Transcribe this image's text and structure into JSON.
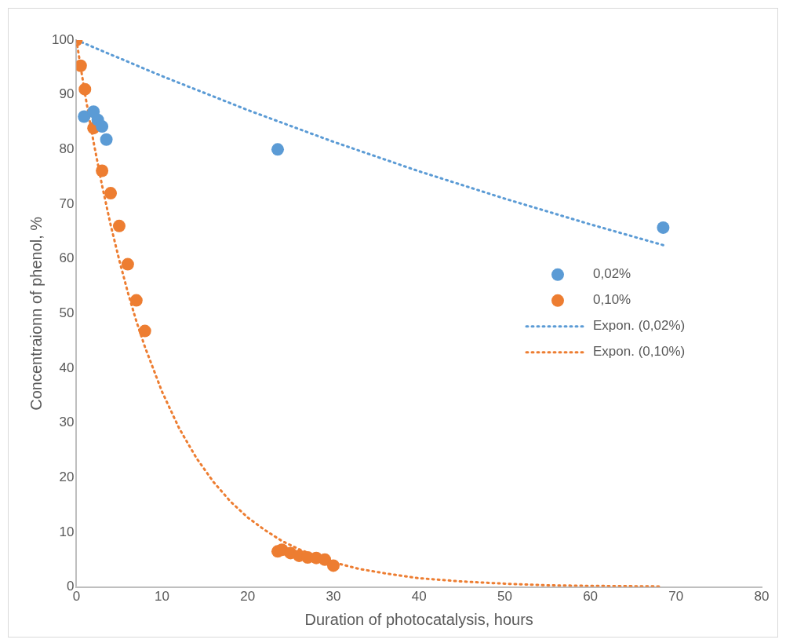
{
  "chart_data": {
    "type": "scatter",
    "xlabel": "Duration of photocatalysis, hours",
    "ylabel": "Concentraionn of phenol, %",
    "xlim": [
      0,
      80
    ],
    "xticks": [
      0,
      10,
      20,
      30,
      40,
      50,
      60,
      70,
      80
    ],
    "ylim": [
      0,
      100
    ],
    "yticks": [
      0,
      10,
      20,
      30,
      40,
      50,
      60,
      70,
      80,
      90,
      100
    ],
    "grid": false,
    "legend": "right",
    "marker": "circle",
    "series": [
      {
        "name": "0,02%",
        "color": "#5b9bd5",
        "x": [
          0.9,
          2.0,
          2.5,
          3.0,
          3.5,
          23.5,
          68.5
        ],
        "values": [
          86.0,
          86.9,
          85.4,
          84.2,
          81.8,
          80.0,
          65.7
        ]
      },
      {
        "name": "0,10%",
        "color": "#ed7d31",
        "x": [
          0,
          0.5,
          1,
          2,
          3,
          4,
          5,
          6,
          7,
          8,
          23.5,
          24,
          25,
          26,
          27,
          28,
          29,
          30
        ],
        "values": [
          100,
          95.3,
          91.0,
          83.9,
          76.1,
          72.0,
          66.0,
          59.0,
          52.4,
          46.8,
          6.5,
          6.8,
          6.2,
          5.7,
          5.4,
          5.3,
          5.0,
          3.9
        ]
      },
      {
        "name": "Expon. (0,02%)",
        "type": "line",
        "color": "#5b9bd5",
        "line_style": "dotted",
        "marker": "none",
        "x": [
          0,
          10,
          20,
          30,
          40,
          50,
          60,
          68.5
        ],
        "values": [
          100,
          93.4,
          87.2,
          81.4,
          76.0,
          71.0,
          66.3,
          62.5
        ]
      },
      {
        "name": "Expon. (0,10%)",
        "type": "line",
        "color": "#ed7d31",
        "line_style": "dotted",
        "marker": "none",
        "x": [
          0,
          1,
          2,
          3,
          4,
          5,
          6,
          7,
          8,
          10,
          12,
          14,
          16,
          18,
          20,
          22,
          24,
          26,
          28,
          30,
          33,
          36,
          40,
          45,
          50,
          55,
          60,
          68
        ],
        "values": [
          100,
          90.2,
          81.4,
          73.4,
          66.2,
          59.8,
          53.9,
          48.6,
          43.9,
          35.7,
          29.0,
          23.6,
          19.2,
          15.6,
          12.7,
          10.4,
          8.4,
          6.9,
          5.6,
          4.5,
          3.3,
          2.5,
          1.6,
          1.0,
          0.6,
          0.3,
          0.2,
          0.1
        ]
      }
    ]
  }
}
